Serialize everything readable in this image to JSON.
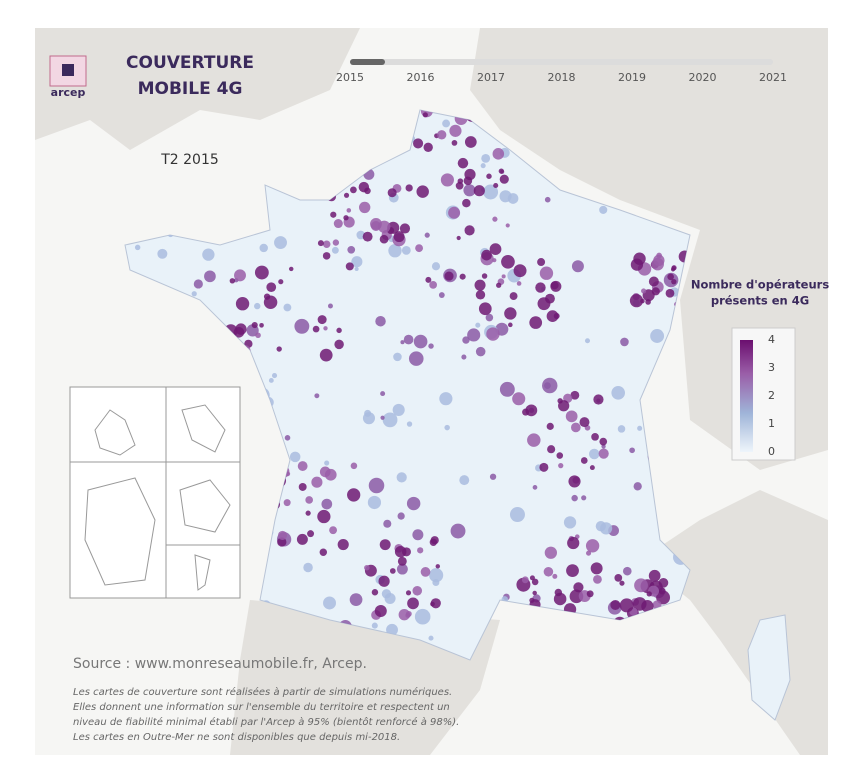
{
  "header": {
    "logo": "arcep",
    "title": [
      "COUVERTURE",
      "MOBILE 4G"
    ],
    "period": "T2 2015"
  },
  "timeline": {
    "years": [
      "2015",
      "2016",
      "2017",
      "2018",
      "2019",
      "2020",
      "2021"
    ]
  },
  "legend": {
    "title": [
      "Nombre d'opérateurs",
      "présents en 4G"
    ],
    "ticks": [
      0,
      1,
      2,
      3,
      4
    ],
    "lim": [
      0,
      4
    ]
  },
  "source": "Source : www.monreseaumobile.fr, Arcep.",
  "note": [
    "Les cartes de couverture sont réalisées à partir de simulations numériques.",
    "Elles donnent une information sur l'ensemble du territoire et respectent un",
    "niveau de fiabilité minimal établi par l'Arcep à 95% (bientôt renforcé à 98%).",
    "Les cartes en Outre-Mer ne sont disponibles que depuis mi-2018."
  ]
}
